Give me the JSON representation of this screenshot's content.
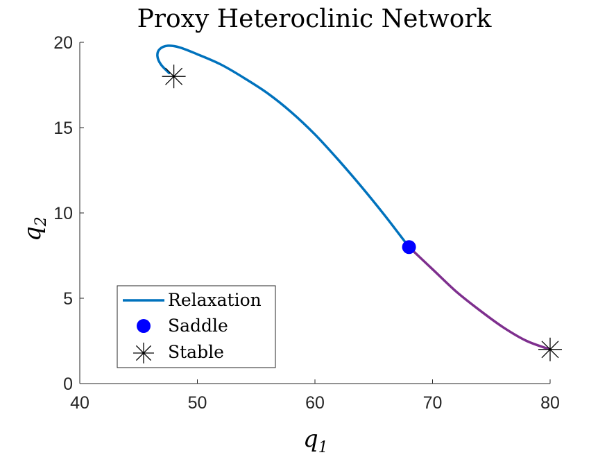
{
  "chart_data": {
    "type": "line",
    "title": "Proxy Heteroclinic Network",
    "xlabel": "q",
    "xlabel_sub": "1",
    "ylabel": "q",
    "ylabel_sub": "2",
    "xlim": [
      40,
      80
    ],
    "ylim": [
      0,
      20
    ],
    "xticks": [
      40,
      50,
      60,
      70,
      80
    ],
    "yticks": [
      0,
      5,
      10,
      15,
      20
    ],
    "grid": false,
    "legend_placement": "bottom-left",
    "legend": [
      {
        "label": "Relaxation",
        "marker": "line",
        "color": "#0072BD"
      },
      {
        "label": "Saddle",
        "marker": "filled-circle",
        "color": "#0000FF"
      },
      {
        "label": "Stable",
        "marker": "asterisk",
        "color": "#000000"
      }
    ],
    "series": [
      {
        "name": "Relaxation",
        "color": "#0072BD",
        "x": [
          68,
          66,
          64,
          62,
          60,
          58,
          56,
          54,
          52,
          50,
          48.5,
          47.5,
          46.8,
          46.6,
          46.9,
          47.6
        ],
        "y": [
          8,
          9.8,
          11.5,
          13.1,
          14.6,
          15.9,
          17.0,
          17.9,
          18.7,
          19.3,
          19.7,
          19.8,
          19.6,
          19.2,
          18.7,
          18.2
        ]
      },
      {
        "name": "",
        "color": "#7E2F8E",
        "x": [
          68,
          70,
          72,
          74,
          76,
          78,
          80
        ],
        "y": [
          8,
          6.7,
          5.4,
          4.3,
          3.3,
          2.5,
          2
        ]
      }
    ],
    "points": [
      {
        "name": "Saddle",
        "marker": "filled-circle",
        "color": "#0000FF",
        "x": 68,
        "y": 8
      },
      {
        "name": "Stable",
        "marker": "asterisk",
        "color": "#000000",
        "x": 48,
        "y": 18
      },
      {
        "name": "Stable",
        "marker": "asterisk",
        "color": "#000000",
        "x": 80,
        "y": 2
      }
    ]
  }
}
